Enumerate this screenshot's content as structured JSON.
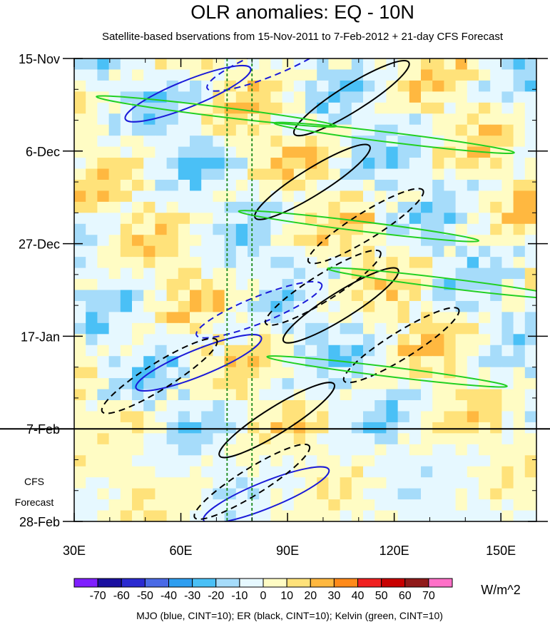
{
  "chart_data": {
    "type": "heatmap",
    "title": "OLR anomalies: EQ - 10N",
    "subtitle": "Satellite-based bservations from 15-Nov-2011 to 7-Feb-2012 + 21-day CFS Forecast",
    "xlabel": "",
    "ylabel": "",
    "x_range_deg_east": [
      30,
      160
    ],
    "x_ticks": [
      {
        "value": 30,
        "label": "30E"
      },
      {
        "value": 60,
        "label": "60E"
      },
      {
        "value": 90,
        "label": "90E"
      },
      {
        "value": 120,
        "label": "120E"
      },
      {
        "value": 150,
        "label": "150E"
      }
    ],
    "time_range_days": [
      0,
      105
    ],
    "y_ticks": [
      {
        "day": 0,
        "label": "15-Nov"
      },
      {
        "day": 21,
        "label": "6-Dec"
      },
      {
        "day": 42,
        "label": "27-Dec"
      },
      {
        "day": 63,
        "label": "17-Jan"
      },
      {
        "day": 84,
        "label": "7-Feb"
      },
      {
        "day": 105,
        "label": "28-Feb"
      }
    ],
    "forecast_start_day": 84,
    "forecast_label_line1": "CFS",
    "forecast_label_line2": "Forecast",
    "reference_lines_deg_east": [
      73,
      80
    ],
    "colorbar": {
      "units": "W/m^2",
      "levels": [
        -70,
        -60,
        -50,
        -40,
        -30,
        -20,
        -10,
        0,
        10,
        20,
        30,
        40,
        50,
        60,
        70
      ],
      "labels": [
        "-70",
        "-60",
        "-50",
        "-40",
        "-30",
        "-20",
        "-10",
        "0",
        "10",
        "20",
        "30",
        "40",
        "50",
        "60",
        "70"
      ],
      "colors": [
        "#7f1fff",
        "#1a0fa0",
        "#2a2ad0",
        "#4a6ae6",
        "#2e9ef0",
        "#4ac0f6",
        "#a6dcfa",
        "#e6f8ff",
        "#fffcc4",
        "#ffe27a",
        "#ffb840",
        "#ff8a1a",
        "#f02020",
        "#c80000",
        "#901a1a",
        "#ff70c8"
      ]
    },
    "contour_legend": "MJO (blue, CINT=10); ER (black, CINT=10); Kelvin (green, CINT=10)",
    "series": [
      {
        "name": "MJO",
        "color": "#1a1ad8",
        "cint": 10,
        "features": [
          {
            "lon": 62,
            "day": 8,
            "value": -10
          },
          {
            "lon": 85,
            "day": 1,
            "value": 10
          },
          {
            "lon": 82,
            "day": 57,
            "value": 10
          },
          {
            "lon": 65,
            "day": 69,
            "value": -10
          },
          {
            "lon": 84,
            "day": 99,
            "value": -10
          }
        ]
      },
      {
        "name": "ER",
        "color": "#000000",
        "cint": 10,
        "features": [
          {
            "lon": 108,
            "day": 9,
            "value": -10
          },
          {
            "lon": 97,
            "day": 28,
            "value": -10
          },
          {
            "lon": 112,
            "day": 38,
            "value": 10
          },
          {
            "lon": 100,
            "day": 52,
            "value": 10
          },
          {
            "lon": 105,
            "day": 56,
            "value": -10
          },
          {
            "lon": 54,
            "day": 72,
            "value": 10
          },
          {
            "lon": 122,
            "day": 65,
            "value": 10
          },
          {
            "lon": 87,
            "day": 82,
            "value": -10
          },
          {
            "lon": 80,
            "day": 96,
            "value": 10
          }
        ]
      },
      {
        "name": "Kelvin",
        "color": "#22d022",
        "cint": 10,
        "features": [
          {
            "lon": 70,
            "day": 12,
            "value": -10
          },
          {
            "lon": 120,
            "day": 18,
            "value": -10
          },
          {
            "lon": 110,
            "day": 38,
            "value": -10
          },
          {
            "lon": 135,
            "day": 51,
            "value": -10
          },
          {
            "lon": 118,
            "day": 71,
            "value": -10
          }
        ]
      }
    ]
  }
}
